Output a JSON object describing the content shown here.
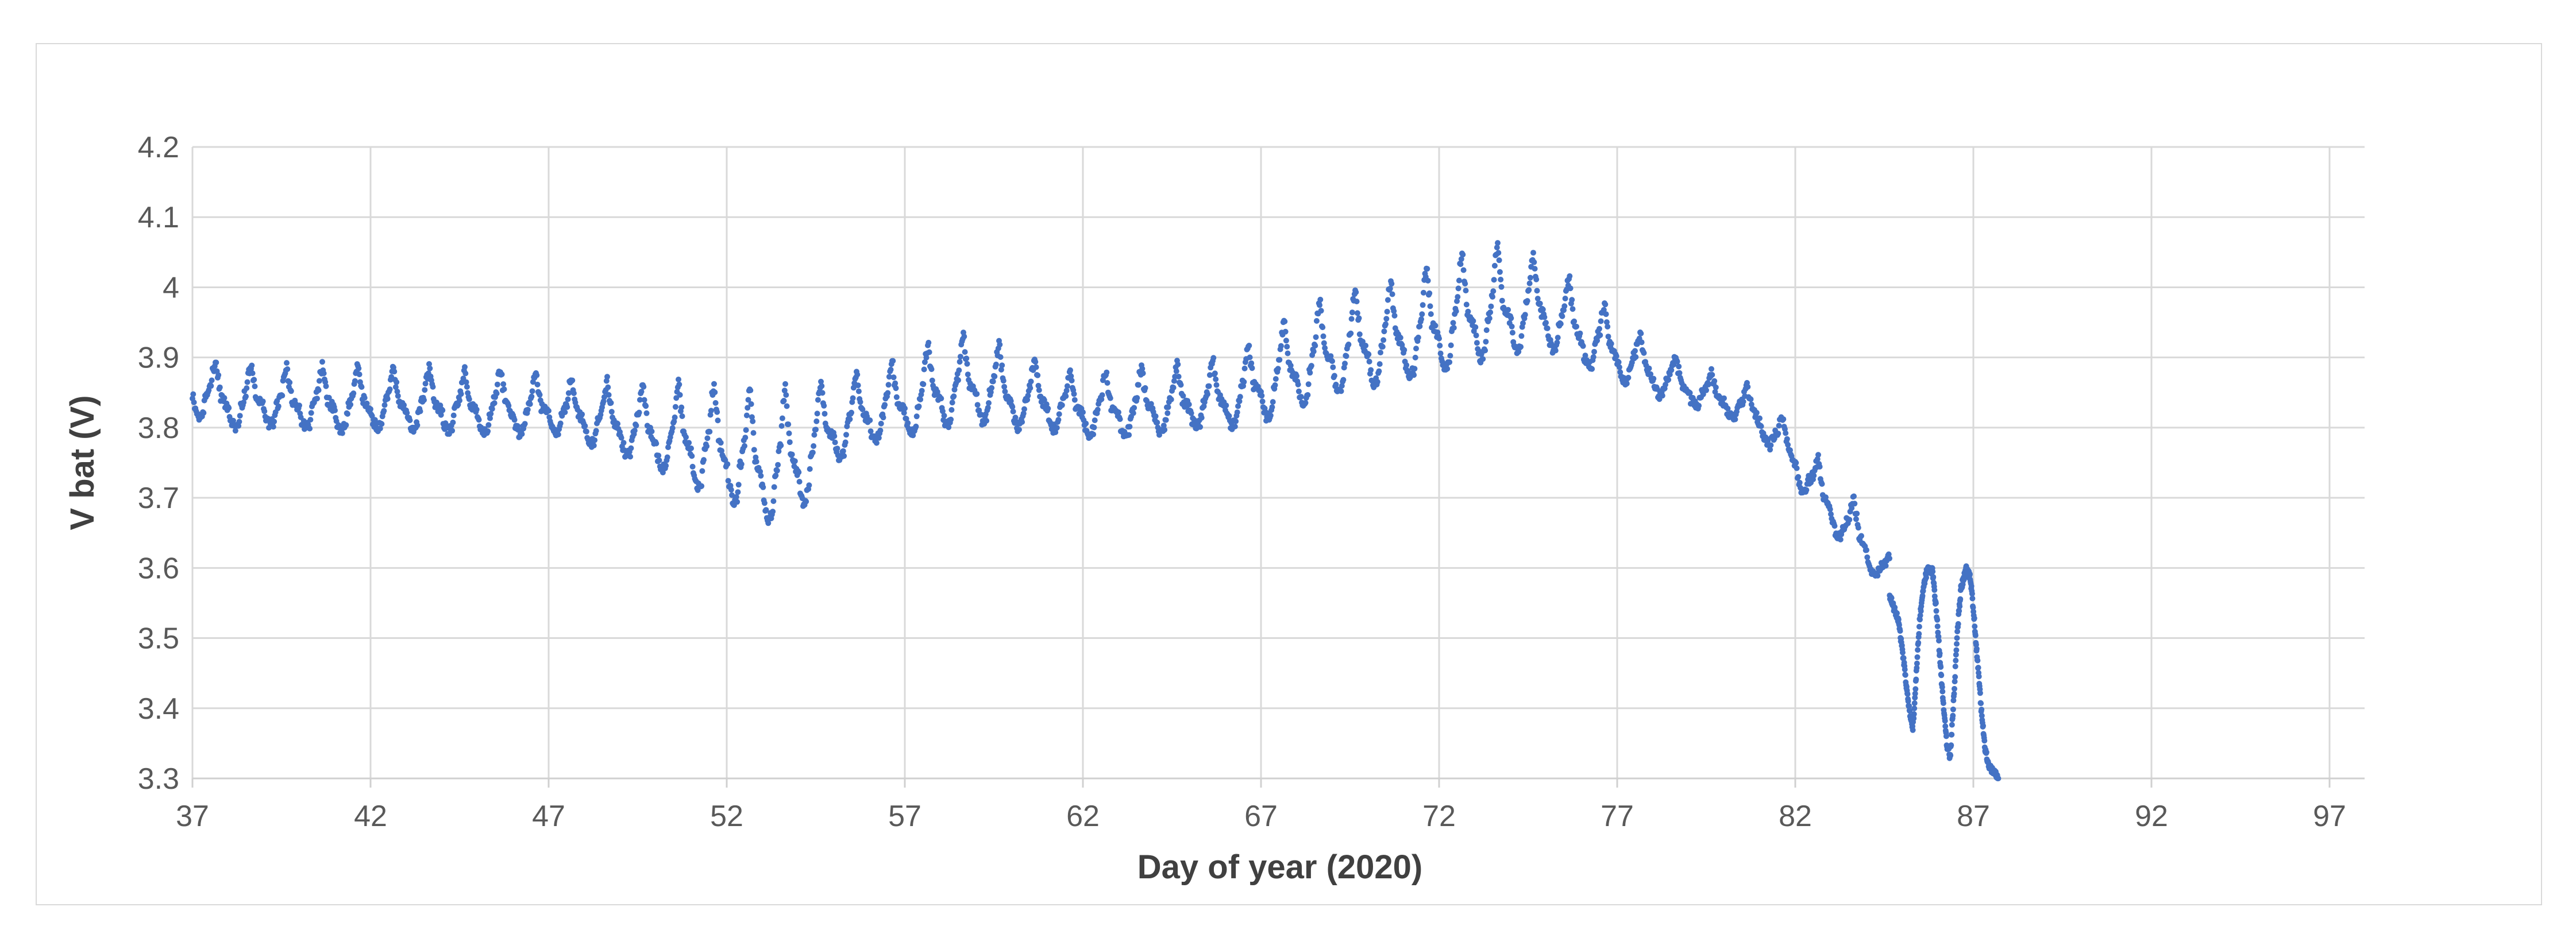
{
  "chart_data": {
    "type": "scatter",
    "title": "",
    "xlabel": "Day of year (2020)",
    "ylabel": "V bat (V)",
    "x_ticks": [
      37,
      42,
      47,
      52,
      57,
      62,
      67,
      72,
      77,
      82,
      87,
      92,
      97
    ],
    "y_tick_labels": [
      "4.2",
      "4.1",
      "4",
      "3.9",
      "3.8",
      "3.7",
      "3.6",
      "3.5",
      "3.4",
      "3.3"
    ],
    "y_tick_values": [
      4.2,
      4.1,
      4.0,
      3.9,
      3.8,
      3.7,
      3.6,
      3.5,
      3.4,
      3.3
    ],
    "xlim": [
      37,
      98
    ],
    "ylim": [
      3.3,
      4.2
    ],
    "grid": true,
    "legend": "none",
    "style": {
      "marker_color": "#4472C4",
      "marker_radius_px": 5,
      "gridline_color": "#D9D9D9",
      "axis_line_color": "#D0D0D0",
      "chart_border_color": "#D9D9D9",
      "tick_label_color": "#595959",
      "axis_title_color": "#404040",
      "background": "#FFFFFF"
    },
    "description": "Dense telemetry scatter of battery voltage vs day of year 2020; ~daily charge/discharge oscillation, dip near day 53, rise to ~4.06 V hump near day 74, decline after day 81 with two deep discharge notches to ~3.33 V and final drop to ~3.30 V ending near day 87.7",
    "daily_envelope_day_min_max": [
      [
        37,
        3.82,
        3.905
      ],
      [
        38,
        3.8,
        3.89
      ],
      [
        39,
        3.805,
        3.89
      ],
      [
        40,
        3.8,
        3.885
      ],
      [
        41,
        3.795,
        3.89
      ],
      [
        42,
        3.8,
        3.89
      ],
      [
        43,
        3.8,
        3.885
      ],
      [
        44,
        3.795,
        3.885
      ],
      [
        45,
        3.795,
        3.88
      ],
      [
        46,
        3.79,
        3.885
      ],
      [
        47,
        3.795,
        3.87
      ],
      [
        48,
        3.78,
        3.87
      ],
      [
        49,
        3.765,
        3.865
      ],
      [
        50,
        3.745,
        3.86
      ],
      [
        51,
        3.72,
        3.865
      ],
      [
        52,
        3.7,
        3.86
      ],
      [
        53,
        3.665,
        3.855
      ],
      [
        54,
        3.68,
        3.86
      ],
      [
        55,
        3.75,
        3.87
      ],
      [
        56,
        3.78,
        3.88
      ],
      [
        57,
        3.79,
        3.9
      ],
      [
        58,
        3.8,
        3.93
      ],
      [
        59,
        3.81,
        3.93
      ],
      [
        60,
        3.8,
        3.91
      ],
      [
        61,
        3.8,
        3.89
      ],
      [
        62,
        3.79,
        3.88
      ],
      [
        63,
        3.79,
        3.88
      ],
      [
        64,
        3.79,
        3.89
      ],
      [
        65,
        3.8,
        3.89
      ],
      [
        66,
        3.8,
        3.9
      ],
      [
        67,
        3.81,
        3.93
      ],
      [
        68,
        3.83,
        3.965
      ],
      [
        69,
        3.85,
        3.99
      ],
      [
        70,
        3.86,
        4.005
      ],
      [
        71,
        3.87,
        4.01
      ],
      [
        72,
        3.88,
        4.04
      ],
      [
        73,
        3.895,
        4.055
      ],
      [
        74,
        3.91,
        4.06
      ],
      [
        75,
        3.915,
        4.04
      ],
      [
        76,
        3.89,
        4.0
      ],
      [
        77,
        3.87,
        3.96
      ],
      [
        78,
        3.85,
        3.92
      ],
      [
        79,
        3.835,
        3.89
      ],
      [
        80,
        3.82,
        3.87
      ],
      [
        81,
        3.79,
        3.85
      ],
      [
        82,
        3.725,
        3.8
      ],
      [
        83,
        3.655,
        3.73
      ],
      [
        84,
        3.6,
        3.68
      ],
      [
        84.65,
        3.565,
        3.615
      ]
    ],
    "cycle_shape_phase_level": [
      [
        0.0,
        0.3
      ],
      [
        0.08,
        0.1
      ],
      [
        0.18,
        0.0
      ],
      [
        0.28,
        0.05
      ],
      [
        0.38,
        0.35
      ],
      [
        0.5,
        0.55
      ],
      [
        0.6,
        0.9
      ],
      [
        0.65,
        1.0
      ],
      [
        0.72,
        0.72
      ],
      [
        0.8,
        0.45
      ],
      [
        0.9,
        0.38
      ],
      [
        1.0,
        0.3
      ]
    ],
    "samples_per_day": 48,
    "noise_v": 0.007,
    "tail_waypoints_day_v": [
      [
        84.65,
        3.56
      ],
      [
        84.9,
        3.525
      ],
      [
        85.05,
        3.465
      ],
      [
        85.18,
        3.405
      ],
      [
        85.3,
        3.37
      ],
      [
        85.4,
        3.45
      ],
      [
        85.5,
        3.53
      ],
      [
        85.6,
        3.575
      ],
      [
        85.72,
        3.6
      ],
      [
        85.85,
        3.595
      ],
      [
        85.95,
        3.545
      ],
      [
        86.05,
        3.48
      ],
      [
        86.15,
        3.41
      ],
      [
        86.25,
        3.35
      ],
      [
        86.35,
        3.33
      ],
      [
        86.45,
        3.415
      ],
      [
        86.55,
        3.51
      ],
      [
        86.65,
        3.57
      ],
      [
        86.8,
        3.6
      ],
      [
        86.92,
        3.585
      ],
      [
        87.02,
        3.53
      ],
      [
        87.12,
        3.465
      ],
      [
        87.22,
        3.4
      ],
      [
        87.32,
        3.345
      ],
      [
        87.42,
        3.32
      ],
      [
        87.52,
        3.312
      ],
      [
        87.62,
        3.308
      ],
      [
        87.7,
        3.3
      ]
    ],
    "tail_samples_per_day": 110,
    "tail_noise_v": 0.005
  }
}
